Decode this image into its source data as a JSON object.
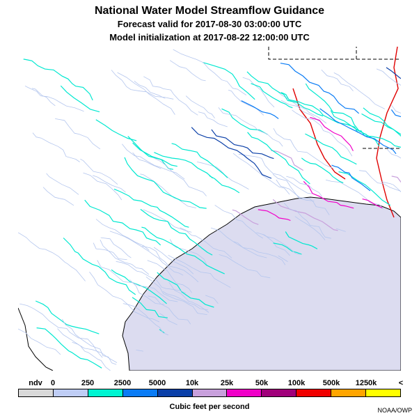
{
  "header": {
    "title": "National Water Model Streamflow Guidance",
    "forecast": "Forecast valid for 2017-08-30 03:00:00 UTC",
    "init": "Model initialization at 2017-08-22 12:00:00 UTC"
  },
  "legend": {
    "ticks": [
      "ndv",
      "0",
      "250",
      "2500",
      "5000",
      "10k",
      "25k",
      "50k",
      "100k",
      "500k",
      "1250k",
      "<"
    ],
    "colors": [
      "#d9d9d9",
      "#bfcdf5",
      "#00f5d2",
      "#0a7cf5",
      "#0a3fa8",
      "#c8a0dc",
      "#f000c8",
      "#a0007a",
      "#f00000",
      "#ffa500",
      "#ffff00"
    ],
    "unit": "Cubic feet per second",
    "credit": "NOAA/OWP"
  },
  "map": {
    "ocean_color": "#dcdcf0",
    "land_color": "#ffffff",
    "border_color": "#000000"
  }
}
